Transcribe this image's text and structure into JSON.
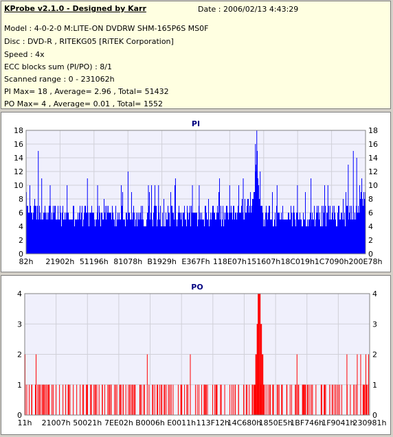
{
  "info": {
    "title": "KProbe v2.1.0 - Designed by Karr",
    "date": "Date : 2006/02/13 4:43:29",
    "lines": [
      "Model : 4-0-2-0 M:LITE-ON DVDRW SHM-165P6S MS0F",
      "Disc : DVD-R , RITEKG05 [RiTEK Corporation]",
      "Speed : 4x",
      "ECC blocks sum (PI/PO) : 8/1",
      "Scanned range : 0 - 231062h",
      "PI Max= 18 , Average= 2.96 , Total= 51432",
      "PO Max= 4 , Average= 0.01 , Total= 1552"
    ]
  },
  "colors": {
    "pi": "#0000ff",
    "po": "#ff0000",
    "plot_bg": "#f0f0fc",
    "grid": "#d0d0d8",
    "title": "#000080"
  },
  "chart_data": [
    {
      "type": "bar",
      "title": "PI",
      "ylim": [
        0,
        18
      ],
      "yticks": [
        0,
        2,
        4,
        6,
        8,
        10,
        12,
        14,
        16,
        18
      ],
      "xticks": [
        "82h",
        "21902h",
        "51196h",
        "81078h",
        "B1929h",
        "E367Fh",
        "118E07h",
        "151607h",
        "18C019h",
        "1C7090h",
        "200E78h"
      ],
      "grid": true,
      "profile": [
        {
          "x": 0.0,
          "y": 8
        },
        {
          "x": 0.01,
          "y": 7
        },
        {
          "x": 0.02,
          "y": 7
        },
        {
          "x": 0.04,
          "y": 6
        },
        {
          "x": 0.06,
          "y": 7
        },
        {
          "x": 0.1,
          "y": 6
        },
        {
          "x": 0.2,
          "y": 6
        },
        {
          "x": 0.35,
          "y": 6
        },
        {
          "x": 0.5,
          "y": 6
        },
        {
          "x": 0.62,
          "y": 6
        },
        {
          "x": 0.65,
          "y": 7
        },
        {
          "x": 0.67,
          "y": 9
        },
        {
          "x": 0.675,
          "y": 12
        },
        {
          "x": 0.68,
          "y": 14
        },
        {
          "x": 0.69,
          "y": 8
        },
        {
          "x": 0.7,
          "y": 6
        },
        {
          "x": 0.85,
          "y": 6
        },
        {
          "x": 0.93,
          "y": 6
        },
        {
          "x": 0.97,
          "y": 7
        },
        {
          "x": 1.0,
          "y": 8
        }
      ],
      "spikes": [
        {
          "x": 0.01,
          "y": 10
        },
        {
          "x": 0.035,
          "y": 15
        },
        {
          "x": 0.045,
          "y": 11
        },
        {
          "x": 0.07,
          "y": 10
        },
        {
          "x": 0.12,
          "y": 10
        },
        {
          "x": 0.18,
          "y": 11
        },
        {
          "x": 0.21,
          "y": 10
        },
        {
          "x": 0.28,
          "y": 10
        },
        {
          "x": 0.3,
          "y": 12
        },
        {
          "x": 0.36,
          "y": 10
        },
        {
          "x": 0.39,
          "y": 10
        },
        {
          "x": 0.44,
          "y": 11
        },
        {
          "x": 0.49,
          "y": 10
        },
        {
          "x": 0.51,
          "y": 10
        },
        {
          "x": 0.57,
          "y": 11
        },
        {
          "x": 0.6,
          "y": 10
        },
        {
          "x": 0.64,
          "y": 11
        },
        {
          "x": 0.676,
          "y": 16
        },
        {
          "x": 0.68,
          "y": 18
        },
        {
          "x": 0.69,
          "y": 12
        },
        {
          "x": 0.74,
          "y": 10
        },
        {
          "x": 0.8,
          "y": 10
        },
        {
          "x": 0.84,
          "y": 11
        },
        {
          "x": 0.89,
          "y": 10
        },
        {
          "x": 0.95,
          "y": 13
        },
        {
          "x": 0.965,
          "y": 15
        },
        {
          "x": 0.975,
          "y": 14
        },
        {
          "x": 0.99,
          "y": 11
        }
      ]
    },
    {
      "type": "bar",
      "title": "PO",
      "ylim": [
        0,
        4
      ],
      "yticks": [
        0,
        1,
        2,
        3,
        4
      ],
      "xticks": [
        "11h",
        "21007h",
        "50021h",
        "7EE02h",
        "B0006h",
        "E0011h",
        "113F12h",
        "14C680h",
        "1850E5h",
        "1BF746h",
        "1F9041h",
        "230981h"
      ],
      "grid": true,
      "ones": [
        0.005,
        0.012,
        0.02,
        0.03,
        0.037,
        0.045,
        0.055,
        0.062,
        0.07,
        0.078,
        0.09,
        0.1,
        0.11,
        0.118,
        0.125,
        0.14,
        0.15,
        0.16,
        0.17,
        0.18,
        0.19,
        0.205,
        0.215,
        0.225,
        0.24,
        0.25,
        0.26,
        0.275,
        0.285,
        0.3,
        0.31,
        0.32,
        0.335,
        0.345,
        0.36,
        0.37,
        0.385,
        0.395,
        0.41,
        0.42,
        0.43,
        0.445,
        0.455,
        0.47,
        0.48,
        0.495,
        0.505,
        0.52,
        0.53,
        0.545,
        0.555,
        0.57,
        0.58,
        0.595,
        0.605,
        0.62,
        0.635,
        0.645,
        0.66,
        0.7,
        0.71,
        0.72,
        0.735,
        0.745,
        0.76,
        0.77,
        0.785,
        0.795,
        0.81,
        0.82,
        0.835,
        0.845,
        0.86,
        0.87,
        0.885,
        0.895,
        0.91,
        0.92,
        0.935,
        0.945,
        0.955,
        0.965,
        0.975,
        0.985,
        0.995
      ],
      "twos": [
        0.0,
        0.032,
        0.355,
        0.48,
        0.69,
        0.79,
        0.935,
        0.965,
        0.975,
        0.99,
        1.0
      ],
      "cluster": [
        {
          "x": 0.665,
          "y": 1
        },
        {
          "x": 0.67,
          "y": 2
        },
        {
          "x": 0.674,
          "y": 3
        },
        {
          "x": 0.677,
          "y": 4
        },
        {
          "x": 0.681,
          "y": 4
        },
        {
          "x": 0.685,
          "y": 3
        },
        {
          "x": 0.689,
          "y": 2
        },
        {
          "x": 0.693,
          "y": 1
        }
      ]
    }
  ]
}
